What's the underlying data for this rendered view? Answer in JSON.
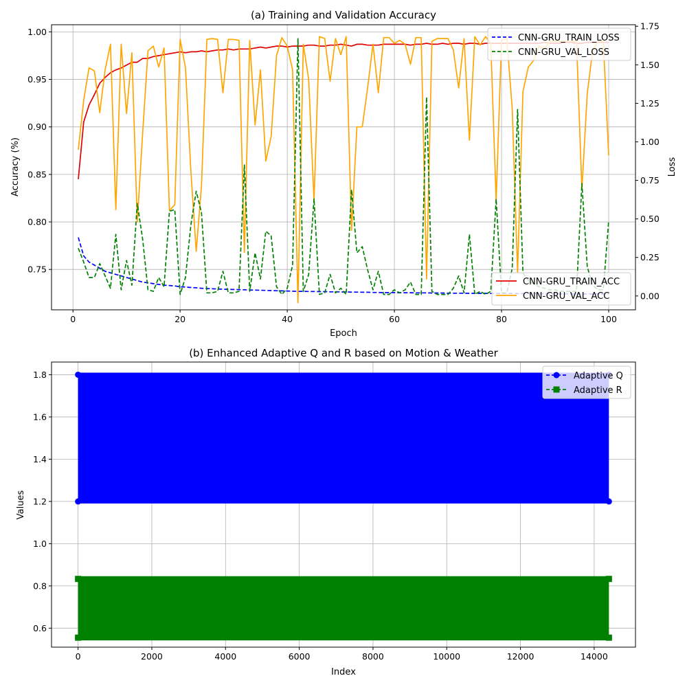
{
  "chart_data": [
    {
      "type": "line",
      "title": "(a) Training and Validation Accuracy",
      "xlabel": "Epoch",
      "ylabel": "Accuracy (%)",
      "y2label": "Loss",
      "xlim": [
        -4,
        105
      ],
      "ylim": [
        0.7075,
        1.0075
      ],
      "y2lim": [
        -0.09,
        1.76
      ],
      "xticks": [
        "0",
        "20",
        "40",
        "60",
        "80",
        "100"
      ],
      "yticks": [
        "0.75",
        "0.80",
        "0.85",
        "0.90",
        "0.95",
        "1.00"
      ],
      "y2ticks": [
        "0.00",
        "0.25",
        "0.50",
        "0.75",
        "1.00",
        "1.25",
        "1.50",
        "1.75"
      ],
      "grid": true,
      "legend_left_axis": "lower right",
      "legend_right_axis": "upper right",
      "x": [
        1,
        2,
        3,
        4,
        5,
        6,
        7,
        8,
        9,
        10,
        11,
        12,
        13,
        14,
        15,
        16,
        17,
        18,
        19,
        20,
        21,
        22,
        23,
        24,
        25,
        26,
        27,
        28,
        29,
        30,
        31,
        32,
        33,
        34,
        35,
        36,
        37,
        38,
        39,
        40,
        41,
        42,
        43,
        44,
        45,
        46,
        47,
        48,
        49,
        50,
        51,
        52,
        53,
        54,
        55,
        56,
        57,
        58,
        59,
        60,
        61,
        62,
        63,
        64,
        65,
        66,
        67,
        68,
        69,
        70,
        71,
        72,
        73,
        74,
        75,
        76,
        77,
        78,
        79,
        80,
        81,
        82,
        83,
        84,
        85,
        86,
        87,
        88,
        89,
        90,
        91,
        92,
        93,
        94,
        95,
        96,
        97,
        98,
        99,
        100
      ],
      "series": [
        {
          "name": "CNN-GRU_TRAIN_ACC",
          "axis": "left",
          "color": "#e00000",
          "style": "solid",
          "values": [
            0.845,
            0.905,
            0.923,
            0.934,
            0.946,
            0.952,
            0.957,
            0.96,
            0.962,
            0.965,
            0.968,
            0.968,
            0.972,
            0.972,
            0.974,
            0.975,
            0.976,
            0.977,
            0.978,
            0.979,
            0.978,
            0.979,
            0.979,
            0.98,
            0.979,
            0.98,
            0.981,
            0.981,
            0.982,
            0.981,
            0.982,
            0.982,
            0.982,
            0.983,
            0.984,
            0.983,
            0.984,
            0.985,
            0.985,
            0.984,
            0.985,
            0.985,
            0.985,
            0.986,
            0.986,
            0.985,
            0.985,
            0.986,
            0.986,
            0.987,
            0.986,
            0.985,
            0.987,
            0.987,
            0.986,
            0.986,
            0.986,
            0.987,
            0.987,
            0.987,
            0.987,
            0.987,
            0.986,
            0.987,
            0.987,
            0.988,
            0.987,
            0.987,
            0.988,
            0.987,
            0.988,
            0.988,
            0.987,
            0.988,
            0.988,
            0.987,
            0.988,
            0.988,
            0.988,
            0.988,
            0.988,
            0.988,
            0.988,
            0.988,
            0.988,
            0.988,
            0.988,
            0.989,
            0.988,
            0.988,
            0.988,
            0.989,
            0.989,
            0.988,
            0.988,
            0.989,
            0.989,
            0.989,
            0.989,
            0.989
          ]
        },
        {
          "name": "CNN-GRU_VAL_ACC",
          "axis": "left",
          "color": "#ffa500",
          "style": "solid",
          "values": [
            0.876,
            0.928,
            0.962,
            0.959,
            0.915,
            0.96,
            0.987,
            0.813,
            0.987,
            0.914,
            0.978,
            0.8,
            0.893,
            0.98,
            0.985,
            0.963,
            0.983,
            0.812,
            0.818,
            0.992,
            0.962,
            0.854,
            0.769,
            0.838,
            0.992,
            0.993,
            0.992,
            0.936,
            0.992,
            0.992,
            0.991,
            0.768,
            0.991,
            0.902,
            0.96,
            0.864,
            0.89,
            0.975,
            0.994,
            0.985,
            0.96,
            0.715,
            0.987,
            0.95,
            0.822,
            0.995,
            0.993,
            0.948,
            0.993,
            0.976,
            0.995,
            0.791,
            0.9,
            0.9,
            0.941,
            0.987,
            0.936,
            0.994,
            0.994,
            0.988,
            0.991,
            0.987,
            0.966,
            0.994,
            0.994,
            0.74,
            0.99,
            0.993,
            0.993,
            0.993,
            0.981,
            0.941,
            0.993,
            0.886,
            0.995,
            0.986,
            0.995,
            0.988,
            0.822,
            0.991,
            0.993,
            0.919,
            0.747,
            0.937,
            0.963,
            0.97,
            0.985,
            0.982,
            0.99,
            0.99,
            0.99,
            0.99,
            0.99,
            0.99,
            0.834,
            0.935,
            0.98,
            0.99,
            0.99,
            0.87
          ]
        },
        {
          "name": "CNN-GRU_TRAIN_LOSS",
          "axis": "right",
          "color": "#0000ff",
          "style": "dashed",
          "values": [
            0.38,
            0.26,
            0.22,
            0.2,
            0.18,
            0.16,
            0.15,
            0.14,
            0.13,
            0.12,
            0.11,
            0.1,
            0.09,
            0.085,
            0.08,
            0.075,
            0.07,
            0.068,
            0.065,
            0.06,
            0.058,
            0.055,
            0.053,
            0.05,
            0.048,
            0.047,
            0.045,
            0.044,
            0.043,
            0.042,
            0.041,
            0.04,
            0.039,
            0.038,
            0.037,
            0.036,
            0.035,
            0.034,
            0.033,
            0.032,
            0.031,
            0.03,
            0.03,
            0.029,
            0.029,
            0.028,
            0.028,
            0.027,
            0.027,
            0.026,
            0.026,
            0.025,
            0.025,
            0.024,
            0.024,
            0.023,
            0.023,
            0.022,
            0.022,
            0.022,
            0.021,
            0.021,
            0.021,
            0.02,
            0.02,
            0.02,
            0.019,
            0.019,
            0.019,
            0.018,
            0.018,
            0.018,
            0.018,
            0.017,
            0.017,
            0.017,
            0.017,
            0.016,
            0.016,
            0.016,
            0.016,
            0.016,
            0.015,
            0.015,
            0.015,
            0.015,
            0.015,
            0.014,
            0.014,
            0.014,
            0.014,
            0.014,
            0.014,
            0.013,
            0.013,
            0.013,
            0.013,
            0.013,
            0.013,
            0.012
          ]
        },
        {
          "name": "CNN-GRU_VAL_LOSS",
          "axis": "right",
          "color": "#008000",
          "style": "dashed",
          "values": [
            0.31,
            0.22,
            0.12,
            0.12,
            0.21,
            0.13,
            0.05,
            0.4,
            0.04,
            0.23,
            0.07,
            0.6,
            0.37,
            0.04,
            0.03,
            0.12,
            0.06,
            0.55,
            0.56,
            0.01,
            0.12,
            0.46,
            0.68,
            0.54,
            0.02,
            0.02,
            0.03,
            0.16,
            0.02,
            0.02,
            0.03,
            0.85,
            0.03,
            0.28,
            0.11,
            0.42,
            0.39,
            0.06,
            0.01,
            0.05,
            0.2,
            1.67,
            0.03,
            0.14,
            0.63,
            0.01,
            0.02,
            0.14,
            0.02,
            0.05,
            0.01,
            0.69,
            0.28,
            0.32,
            0.17,
            0.04,
            0.16,
            0.01,
            0.01,
            0.04,
            0.02,
            0.04,
            0.09,
            0.01,
            0.01,
            1.29,
            0.03,
            0.01,
            0.01,
            0.01,
            0.05,
            0.13,
            0.02,
            0.4,
            0.01,
            0.03,
            0.01,
            0.03,
            0.63,
            0.02,
            0.02,
            0.18,
            1.21,
            0.15,
            0.1,
            0.08,
            0.06,
            0.05,
            0.04,
            0.04,
            0.03,
            0.03,
            0.03,
            0.03,
            0.73,
            0.19,
            0.07,
            0.04,
            0.04,
            0.49
          ]
        }
      ]
    },
    {
      "type": "scatter",
      "title": "(b) Enhanced Adaptive Q and R based on Motion & Weather",
      "xlabel": "Index",
      "ylabel": "Values",
      "xlim": [
        -720,
        15120
      ],
      "ylim": [
        0.51,
        1.86
      ],
      "xticks": [
        "0",
        "2000",
        "4000",
        "6000",
        "8000",
        "10000",
        "12000",
        "14000"
      ],
      "yticks": [
        "0.6",
        "0.8",
        "1.0",
        "1.2",
        "1.4",
        "1.6",
        "1.8"
      ],
      "grid": true,
      "legend": "upper right",
      "n_points": 14400,
      "series": [
        {
          "name": "Adaptive Q",
          "color": "#0000ff",
          "marker": "circle",
          "style": "dashed",
          "low": 1.2,
          "high": 1.8
        },
        {
          "name": "Adaptive R",
          "color": "#008000",
          "marker": "square",
          "style": "dashed",
          "low": 0.555,
          "high": 0.833
        }
      ]
    }
  ]
}
